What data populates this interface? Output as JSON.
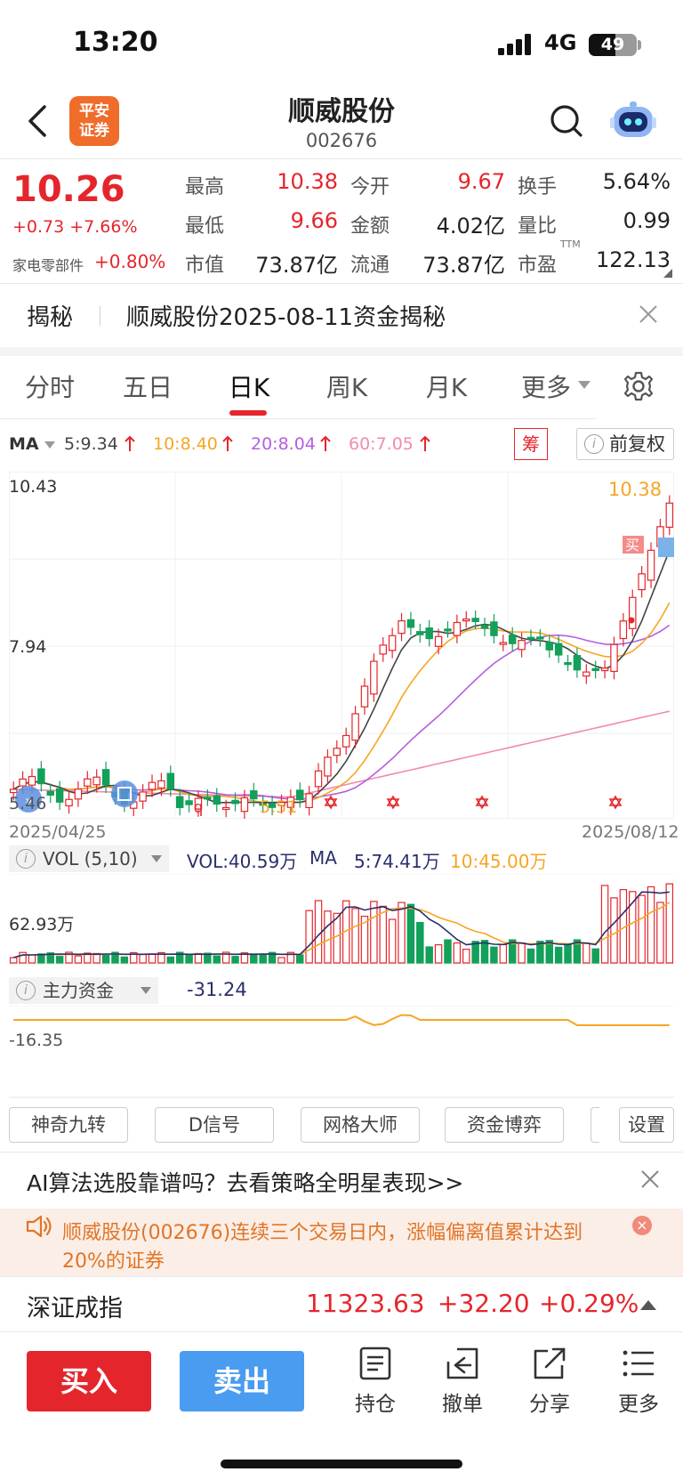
{
  "status_bar": {
    "time": "13:20",
    "network": "4G",
    "battery": "49"
  },
  "header": {
    "title": "顺威股份",
    "code": "002676",
    "logo_text": "平安\n证券"
  },
  "quote": {
    "price": "10.26",
    "change": "+0.73 +7.66%",
    "sector_name": "家电零部件",
    "sector_change": "+0.80%",
    "fields": [
      {
        "label": "最高",
        "value": "10.38",
        "color": "#e4262c"
      },
      {
        "label": "今开",
        "value": "9.67",
        "color": "#e4262c"
      },
      {
        "label": "换手",
        "value": "5.64%",
        "color": "#222222"
      },
      {
        "label": "最低",
        "value": "9.66",
        "color": "#e4262c"
      },
      {
        "label": "金额",
        "value": "4.02亿",
        "color": "#222222"
      },
      {
        "label": "量比",
        "value": "0.99",
        "color": "#222222"
      },
      {
        "label": "市值",
        "value": "73.87亿",
        "color": "#222222"
      },
      {
        "label": "流通",
        "value": "73.87亿",
        "color": "#222222"
      },
      {
        "label": "市盈",
        "value": "122.13",
        "color": "#222222",
        "sup": "TTM"
      }
    ]
  },
  "reveal": {
    "label": "揭秘",
    "text": "顺威股份2025-08-11资金揭秘"
  },
  "tabs": [
    "分时",
    "五日",
    "日K",
    "周K",
    "月K",
    "更多"
  ],
  "active_tab": 2,
  "ma_bar": {
    "label": "MA",
    "items": [
      {
        "text": "5:9.34",
        "color": "#444444"
      },
      {
        "text": "10:8.40",
        "color": "#f5a623"
      },
      {
        "text": "20:8.04",
        "color": "#b55fe0"
      },
      {
        "text": "60:7.05",
        "color": "#f28ab0"
      }
    ],
    "chip_label": "筹",
    "adjust_label": "前复权"
  },
  "kline": {
    "y_top_label": "10.43",
    "y_mid_label": "7.94",
    "y_low_label": "5.46",
    "high_marker": "10.38",
    "low_marker": "5.51",
    "buy_marker": "买",
    "start_date": "2025/04/25",
    "end_date": "2025/08/12"
  },
  "volume": {
    "indicator": "VOL (5,10)",
    "vol_text": "VOL:40.59万",
    "ma_label": "MA",
    "ma5": "5:74.41万",
    "ma10": "10:45.00万",
    "axis_label": "62.93万"
  },
  "capital": {
    "indicator": "主力资金",
    "value": "-31.24",
    "axis_label": "-16.35"
  },
  "tools": [
    "神奇九转",
    "D信号",
    "网格大师",
    "资金博弈",
    "设置"
  ],
  "ai_banner": "AI算法选股靠谱吗？去看策略全明星表现>>",
  "alert": "顺威股份(002676)连续三个交易日内，涨幅偏离值累计达到20%的证券",
  "index": {
    "name": "深证成指",
    "value": "11323.63",
    "change": "+32.20",
    "pct": "+0.29%"
  },
  "bottom": {
    "buy": "买入",
    "sell": "卖出",
    "items": [
      "持仓",
      "撤单",
      "分享",
      "更多"
    ]
  }
}
